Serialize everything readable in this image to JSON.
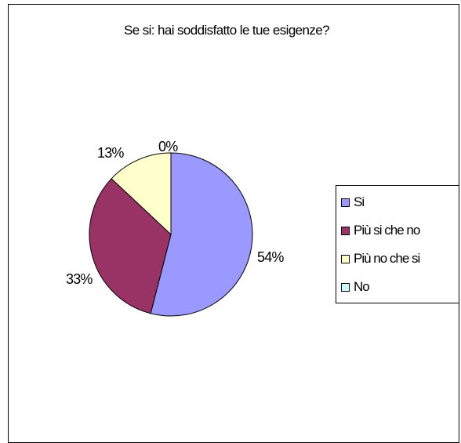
{
  "chart_data": {
    "type": "pie",
    "title": "Se si: hai soddisfatto le tue esigenze?",
    "categories": [
      "Si",
      "Più si che no",
      "Più no che si",
      "No"
    ],
    "values": [
      54,
      33,
      13,
      0
    ],
    "value_labels": [
      "54%",
      "33%",
      "13%",
      "0%"
    ],
    "colors": [
      "#9999FF",
      "#993366",
      "#FFFFCC",
      "#CCFFFF"
    ],
    "legend_position": "right"
  }
}
